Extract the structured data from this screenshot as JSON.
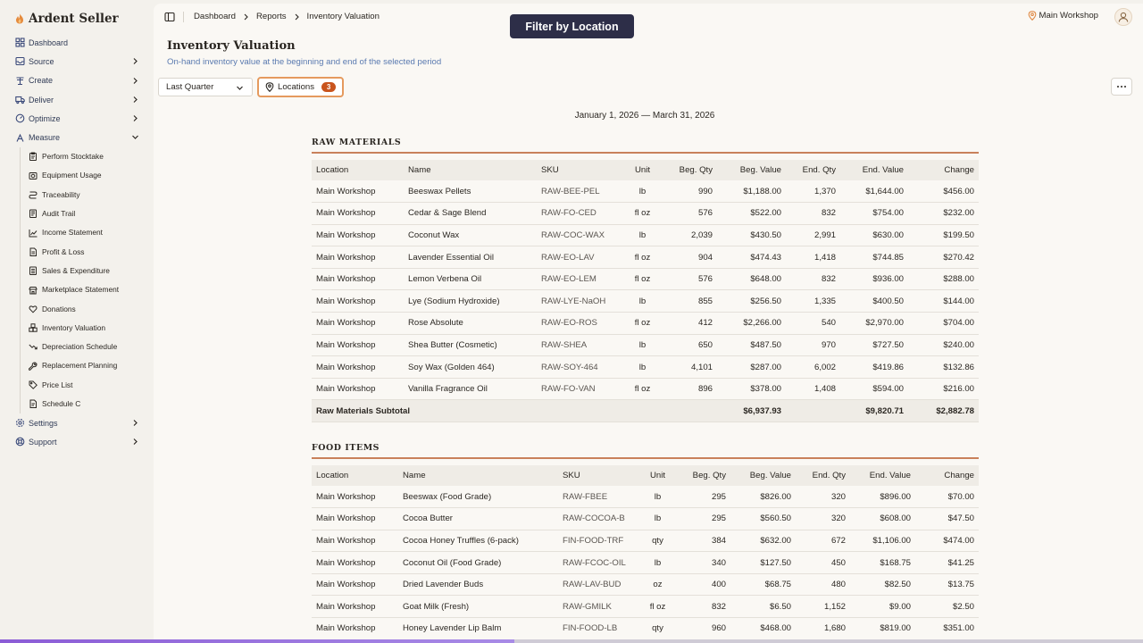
{
  "brand": {
    "name": "Ardent Seller"
  },
  "sidebar": {
    "items": [
      {
        "label": "Dashboard",
        "icon": "grid-icon",
        "chevron": false
      },
      {
        "label": "Source",
        "icon": "inbox-icon",
        "chevron": true
      },
      {
        "label": "Create",
        "icon": "tools-icon",
        "chevron": true
      },
      {
        "label": "Deliver",
        "icon": "truck-icon",
        "chevron": true
      },
      {
        "label": "Optimize",
        "icon": "gauge-icon",
        "chevron": true
      },
      {
        "label": "Measure",
        "icon": "ruler-icon",
        "chevron": true,
        "expanded": true
      }
    ],
    "sub_items": [
      {
        "label": "Perform Stocktake",
        "icon": "clipboard-icon"
      },
      {
        "label": "Equipment Usage",
        "icon": "equipment-icon"
      },
      {
        "label": "Traceability",
        "icon": "route-icon"
      },
      {
        "label": "Audit Trail",
        "icon": "audit-icon"
      },
      {
        "label": "Income Statement",
        "icon": "line-chart-icon"
      },
      {
        "label": "Profit & Loss",
        "icon": "document-icon"
      },
      {
        "label": "Sales & Expenditure",
        "icon": "receipt-icon"
      },
      {
        "label": "Marketplace Statement",
        "icon": "store-icon"
      },
      {
        "label": "Donations",
        "icon": "heart-icon"
      },
      {
        "label": "Inventory Valuation",
        "icon": "boxes-icon",
        "active": true
      },
      {
        "label": "Depreciation Schedule",
        "icon": "trending-down-icon"
      },
      {
        "label": "Replacement Planning",
        "icon": "wrench-icon"
      },
      {
        "label": "Price List",
        "icon": "tag-icon"
      },
      {
        "label": "Schedule C",
        "icon": "file-icon"
      }
    ],
    "bottom_items": [
      {
        "label": "Settings",
        "icon": "gear-icon",
        "chevron": true
      },
      {
        "label": "Support",
        "icon": "lifebuoy-icon",
        "chevron": true
      }
    ]
  },
  "breadcrumbs": [
    "Dashboard",
    "Reports",
    "Inventory Valuation"
  ],
  "banner": "Filter by Location",
  "header": {
    "location": "Main Workshop"
  },
  "page": {
    "title": "Inventory Valuation",
    "subtitle": "On-hand inventory value at the beginning and end of the selected period"
  },
  "filters": {
    "period": "Last Quarter",
    "locations_label": "Locations",
    "locations_count": "3"
  },
  "date_range": "January 1, 2026 — March 31, 2026",
  "raw": {
    "title": "RAW MATERIALS",
    "columns": [
      "Location",
      "Name",
      "SKU",
      "Unit",
      "Beg. Qty",
      "Beg. Value",
      "End. Qty",
      "End. Value",
      "Change"
    ],
    "rows": [
      [
        "Main Workshop",
        "Beeswax Pellets",
        "RAW-BEE-PEL",
        "lb",
        "990",
        "$1,188.00",
        "1,370",
        "$1,644.00",
        "$456.00"
      ],
      [
        "Main Workshop",
        "Cedar & Sage Blend",
        "RAW-FO-CED",
        "fl oz",
        "576",
        "$522.00",
        "832",
        "$754.00",
        "$232.00"
      ],
      [
        "Main Workshop",
        "Coconut Wax",
        "RAW-COC-WAX",
        "lb",
        "2,039",
        "$430.50",
        "2,991",
        "$630.00",
        "$199.50"
      ],
      [
        "Main Workshop",
        "Lavender Essential Oil",
        "RAW-EO-LAV",
        "fl oz",
        "904",
        "$474.43",
        "1,418",
        "$744.85",
        "$270.42"
      ],
      [
        "Main Workshop",
        "Lemon Verbena Oil",
        "RAW-EO-LEM",
        "fl oz",
        "576",
        "$648.00",
        "832",
        "$936.00",
        "$288.00"
      ],
      [
        "Main Workshop",
        "Lye (Sodium Hydroxide)",
        "RAW-LYE-NaOH",
        "lb",
        "855",
        "$256.50",
        "1,335",
        "$400.50",
        "$144.00"
      ],
      [
        "Main Workshop",
        "Rose Absolute",
        "RAW-EO-ROS",
        "fl oz",
        "412",
        "$2,266.00",
        "540",
        "$2,970.00",
        "$704.00"
      ],
      [
        "Main Workshop",
        "Shea Butter (Cosmetic)",
        "RAW-SHEA",
        "lb",
        "650",
        "$487.50",
        "970",
        "$727.50",
        "$240.00"
      ],
      [
        "Main Workshop",
        "Soy Wax (Golden 464)",
        "RAW-SOY-464",
        "lb",
        "4,101",
        "$287.00",
        "6,002",
        "$419.86",
        "$132.86"
      ],
      [
        "Main Workshop",
        "Vanilla Fragrance Oil",
        "RAW-FO-VAN",
        "fl oz",
        "896",
        "$378.00",
        "1,408",
        "$594.00",
        "$216.00"
      ]
    ],
    "subtotal": {
      "label": "Raw Materials Subtotal",
      "beg_value": "$6,937.93",
      "end_value": "$9,820.71",
      "change": "$2,882.78"
    }
  },
  "food": {
    "title": "FOOD ITEMS",
    "columns": [
      "Location",
      "Name",
      "SKU",
      "Unit",
      "Beg. Qty",
      "Beg. Value",
      "End. Qty",
      "End. Value",
      "Change"
    ],
    "rows": [
      [
        "Main Workshop",
        "Beeswax (Food Grade)",
        "RAW-FBEE",
        "lb",
        "295",
        "$826.00",
        "320",
        "$896.00",
        "$70.00"
      ],
      [
        "Main Workshop",
        "Cocoa Butter",
        "RAW-COCOA-B",
        "lb",
        "295",
        "$560.50",
        "320",
        "$608.00",
        "$47.50"
      ],
      [
        "Main Workshop",
        "Cocoa Honey Truffles (6-pack)",
        "FIN-FOOD-TRF",
        "qty",
        "384",
        "$632.00",
        "672",
        "$1,106.00",
        "$474.00"
      ],
      [
        "Main Workshop",
        "Coconut Oil (Food Grade)",
        "RAW-FCOC-OIL",
        "lb",
        "340",
        "$127.50",
        "450",
        "$168.75",
        "$41.25"
      ],
      [
        "Main Workshop",
        "Dried Lavender Buds",
        "RAW-LAV-BUD",
        "oz",
        "400",
        "$68.75",
        "480",
        "$82.50",
        "$13.75"
      ],
      [
        "Main Workshop",
        "Goat Milk (Fresh)",
        "RAW-GMILK",
        "fl oz",
        "832",
        "$6.50",
        "1,152",
        "$9.00",
        "$2.50"
      ],
      [
        "Main Workshop",
        "Honey Lavender Lip Balm",
        "FIN-FOOD-LB",
        "qty",
        "960",
        "$468.00",
        "1,680",
        "$819.00",
        "$351.00"
      ]
    ]
  },
  "progress": {
    "fraction": 0.45
  },
  "colors": {
    "accent": "#c9541d",
    "banner_bg": "#2d2e48",
    "link": "#5a7ab0",
    "progress": "#8b5cd6"
  }
}
